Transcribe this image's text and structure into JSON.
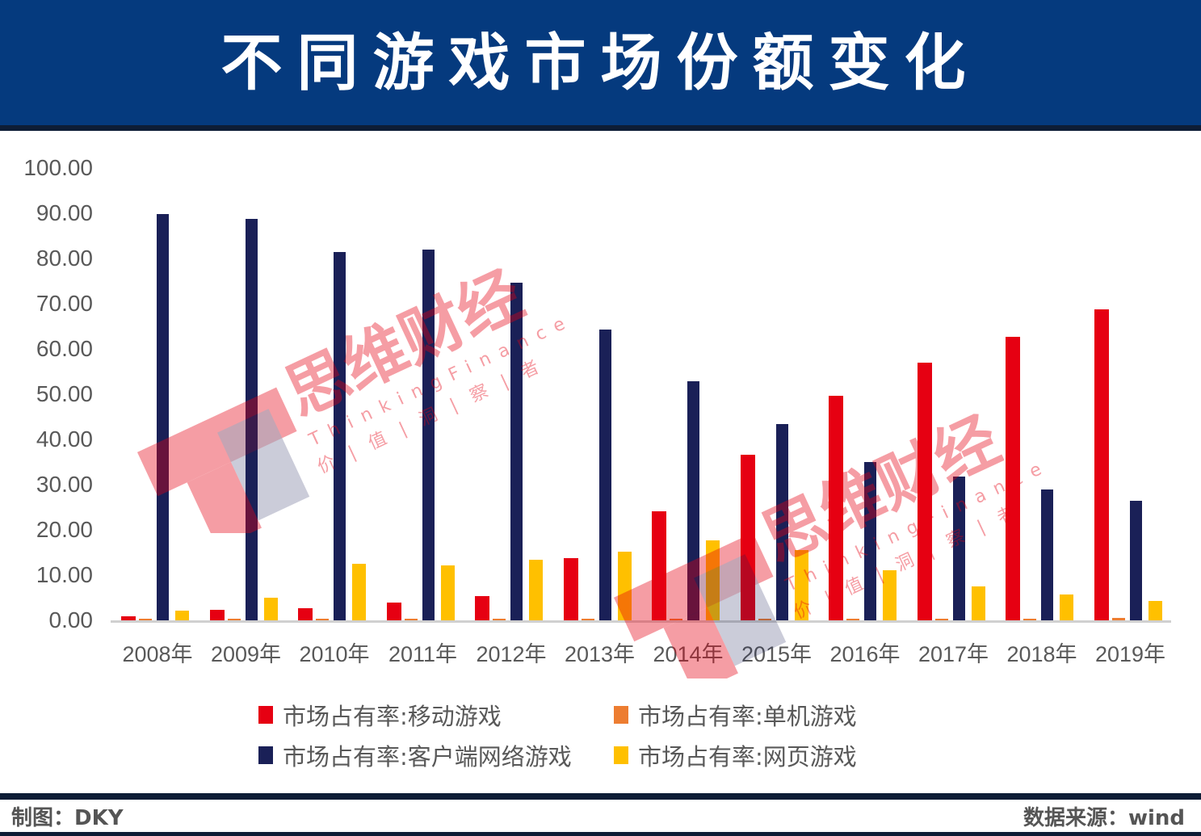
{
  "header": {
    "title": "不同游戏市场份额变化"
  },
  "footer": {
    "author": "制图：DKY",
    "source": "数据来源：wind"
  },
  "watermark": {
    "text_cn": "思维财经",
    "text_en": "ThinkingFinance",
    "tagline": "价|值|洞|察|者"
  },
  "colors": {
    "header_bg": "#053a7e",
    "dark_bar": "#0e1d36",
    "mobile": "#e60012",
    "single": "#ed7d31",
    "client": "#1a2057",
    "web": "#ffc000"
  },
  "chart_data": {
    "type": "bar",
    "title": "不同游戏市场份额变化",
    "xlabel": "",
    "ylabel": "",
    "ylim": [
      0,
      100
    ],
    "yticks": [
      "0.00",
      "10.00",
      "20.00",
      "30.00",
      "40.00",
      "50.00",
      "60.00",
      "70.00",
      "80.00",
      "90.00",
      "100.00"
    ],
    "grid": false,
    "legend_position": "bottom",
    "categories": [
      "2008年",
      "2009年",
      "2010年",
      "2011年",
      "2012年",
      "2013年",
      "2014年",
      "2015年",
      "2016年",
      "2017年",
      "2018年",
      "2019年"
    ],
    "series": [
      {
        "name": "市场占有率:移动游戏",
        "color": "#e60012",
        "values": [
          0.9,
          2.3,
          2.7,
          3.9,
          5.4,
          13.8,
          24.1,
          36.6,
          49.6,
          57.0,
          62.7,
          68.8
        ]
      },
      {
        "name": "市场占有率:单机游戏",
        "color": "#ed7d31",
        "values": [
          0.3,
          0.3,
          0.3,
          0.3,
          0.3,
          0.3,
          0.3,
          0.3,
          0.3,
          0.3,
          0.3,
          0.6
        ]
      },
      {
        "name": "市场占有率:客户端网络游戏",
        "color": "#1a2057",
        "values": [
          89.8,
          88.8,
          81.4,
          82.0,
          74.6,
          64.3,
          52.9,
          43.4,
          35.0,
          31.8,
          28.9,
          26.4
        ]
      },
      {
        "name": "市场占有率:网页游戏",
        "color": "#ffc000",
        "values": [
          2.1,
          5.0,
          12.5,
          12.1,
          13.4,
          15.2,
          17.7,
          15.5,
          11.1,
          7.5,
          5.7,
          4.3
        ]
      }
    ]
  }
}
